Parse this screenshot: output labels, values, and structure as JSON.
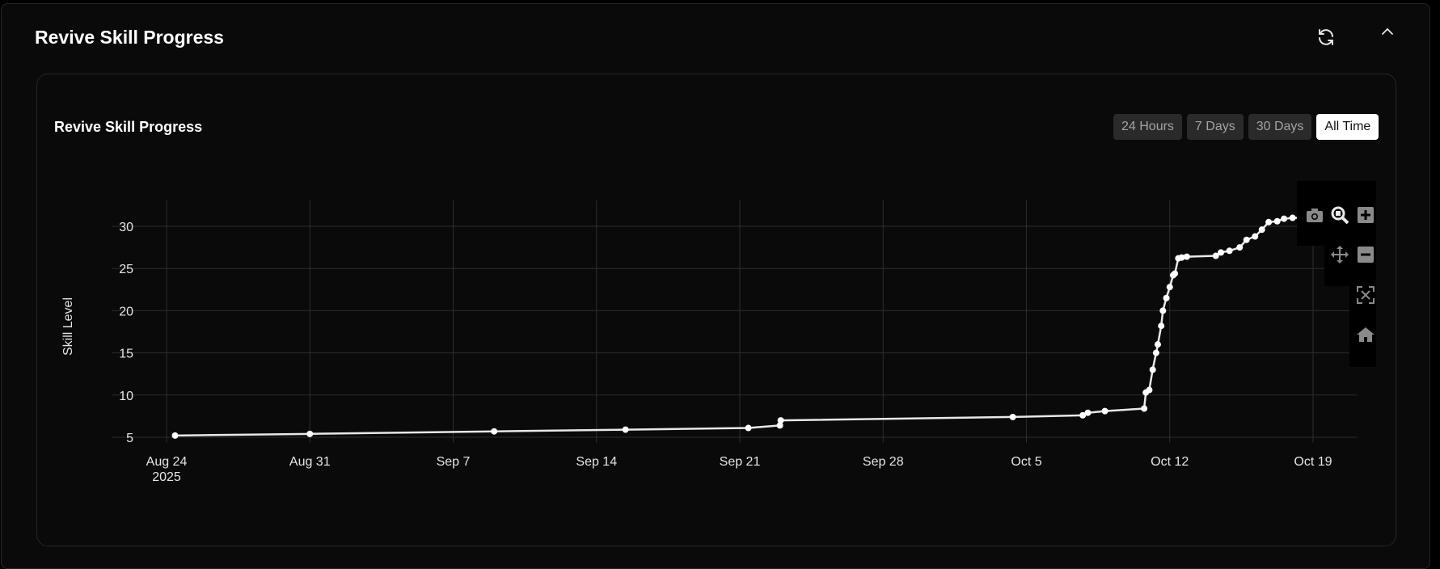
{
  "panel": {
    "title": "Revive Skill Progress"
  },
  "icons": {
    "refresh": "refresh-icon",
    "collapse": "chevron-up-icon"
  },
  "chart_header": {
    "title": "Revive Skill Progress"
  },
  "range_buttons": [
    {
      "label": "24 Hours",
      "active": false
    },
    {
      "label": "7 Days",
      "active": false
    },
    {
      "label": "30 Days",
      "active": false
    },
    {
      "label": "All Time",
      "active": true
    }
  ],
  "modebar": [
    "camera-icon",
    "zoom-icon",
    "zoom-in-icon",
    "pan-icon",
    "zoom-out-icon",
    "autoscale-icon",
    "reset-axes-icon"
  ],
  "colors": {
    "background": "#0a0a0a",
    "line": "#ffffff",
    "grid": "#2c2c2c",
    "active_button": "#ffffff"
  },
  "chart_data": {
    "type": "line",
    "title": "",
    "xlabel": "",
    "ylabel": "Skill Level",
    "grid": true,
    "x_range": [
      "2025-08-24",
      "2025-10-20"
    ],
    "ylim": [
      4,
      34
    ],
    "x_ticks": [
      {
        "date": "2025-08-24",
        "label": "Aug 24",
        "sublabel": "2025"
      },
      {
        "date": "2025-08-31",
        "label": "Aug 31",
        "sublabel": ""
      },
      {
        "date": "2025-09-07",
        "label": "Sep 7",
        "sublabel": ""
      },
      {
        "date": "2025-09-14",
        "label": "Sep 14",
        "sublabel": ""
      },
      {
        "date": "2025-09-21",
        "label": "Sep 21",
        "sublabel": ""
      },
      {
        "date": "2025-09-28",
        "label": "Sep 28",
        "sublabel": ""
      },
      {
        "date": "2025-10-05",
        "label": "Oct 5",
        "sublabel": ""
      },
      {
        "date": "2025-10-12",
        "label": "Oct 12",
        "sublabel": ""
      },
      {
        "date": "2025-10-19",
        "label": "Oct 19",
        "sublabel": ""
      }
    ],
    "y_ticks": [
      5,
      10,
      15,
      20,
      25,
      30
    ],
    "series": [
      {
        "x": [
          "2025-08-24 10:00",
          "2025-08-31 00:00",
          "2025-09-09 00:00",
          "2025-09-15 10:00",
          "2025-09-21 10:00",
          "2025-09-22 23:00",
          "2025-09-23 00:00",
          "2025-10-04 08:00",
          "2025-10-07 18:00",
          "2025-10-08 00:00",
          "2025-10-08 20:00",
          "2025-10-10 18:00",
          "2025-10-10 20:00",
          "2025-10-11 00:00",
          "2025-10-11 04:00",
          "2025-10-11 08:00",
          "2025-10-11 10:00",
          "2025-10-11 14:00",
          "2025-10-11 16:00",
          "2025-10-11 20:00",
          "2025-10-12 00:00",
          "2025-10-12 04:00",
          "2025-10-12 06:00",
          "2025-10-12 10:00",
          "2025-10-12 14:00",
          "2025-10-12 20:00",
          "2025-10-14 06:00",
          "2025-10-14 12:00",
          "2025-10-14 22:00",
          "2025-10-15 10:00",
          "2025-10-15 18:00",
          "2025-10-16 04:00",
          "2025-10-16 12:00",
          "2025-10-16 20:00",
          "2025-10-17 06:00",
          "2025-10-17 14:00",
          "2025-10-18 00:00",
          "2025-10-18 10:00"
        ],
        "y": [
          5.2,
          5.4,
          5.7,
          5.9,
          6.1,
          6.4,
          7.0,
          7.4,
          7.6,
          7.9,
          8.1,
          8.4,
          10.3,
          10.6,
          13.0,
          15.0,
          16.0,
          18.2,
          20.0,
          21.5,
          22.8,
          24.2,
          24.4,
          26.2,
          26.3,
          26.4,
          26.5,
          26.9,
          27.1,
          27.5,
          28.4,
          28.8,
          29.6,
          30.5,
          30.6,
          30.9,
          31.0,
          31.0
        ]
      }
    ]
  }
}
